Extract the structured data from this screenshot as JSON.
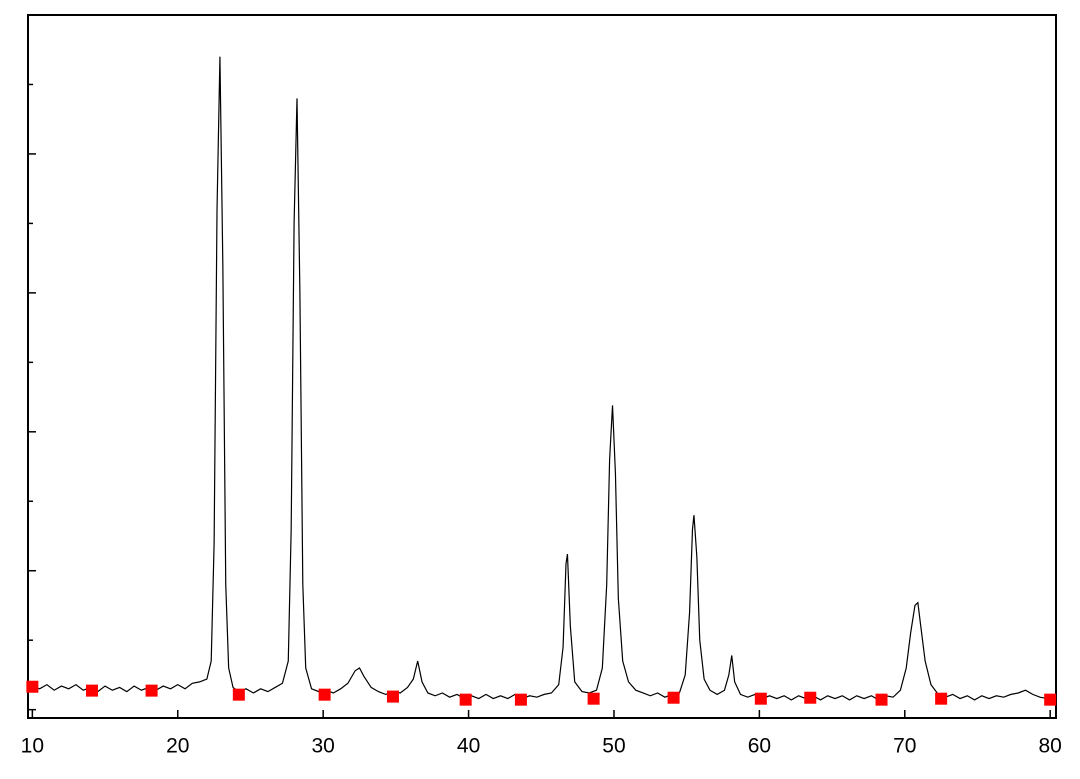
{
  "chart_data": {
    "type": "line",
    "xlim": [
      9.7,
      80.4
    ],
    "xticks": [
      10,
      20,
      30,
      40,
      50,
      60,
      70,
      80
    ],
    "ylim": [
      -0.06,
      5.0
    ],
    "yticks": [
      0,
      1,
      2,
      3,
      4
    ],
    "yminorticks": [
      0.5,
      1.5,
      2.5,
      3.5,
      4.5
    ],
    "series": [
      {
        "type": "line",
        "color": "#000000",
        "x": [
          10,
          10.5,
          11,
          11.5,
          12,
          12.5,
          13,
          13.5,
          14,
          14.5,
          15,
          15.5,
          16,
          16.5,
          17,
          17.5,
          18,
          18.5,
          19,
          19.5,
          20,
          20.5,
          21,
          21.5,
          22,
          22.3,
          22.5,
          22.7,
          22.9,
          23.1,
          23.3,
          23.5,
          23.8,
          24.2,
          24.7,
          25.2,
          25.7,
          26.2,
          26.7,
          27.2,
          27.6,
          27.8,
          28.0,
          28.2,
          28.4,
          28.6,
          28.8,
          29.2,
          29.7,
          30.2,
          30.7,
          31.2,
          31.7,
          32.2,
          32.5,
          32.8,
          33.3,
          33.8,
          34.3,
          34.8,
          35.3,
          35.8,
          36.2,
          36.5,
          36.8,
          37.2,
          37.7,
          38.2,
          38.7,
          39.2,
          39.7,
          40.2,
          40.7,
          41.2,
          41.7,
          42.2,
          42.7,
          43.2,
          43.7,
          44.2,
          44.7,
          45.2,
          45.7,
          46.2,
          46.5,
          46.7,
          46.8,
          47.0,
          47.3,
          47.8,
          48.3,
          48.8,
          49.2,
          49.5,
          49.7,
          49.9,
          50.1,
          50.3,
          50.6,
          51,
          51.5,
          52,
          52.5,
          53,
          53.5,
          54,
          54.5,
          54.9,
          55.2,
          55.4,
          55.5,
          55.7,
          55.9,
          56.2,
          56.6,
          57.1,
          57.6,
          57.9,
          58.1,
          58.3,
          58.7,
          59.2,
          59.7,
          60.2,
          60.7,
          61.2,
          61.7,
          62.2,
          62.7,
          63.2,
          63.7,
          64.2,
          64.7,
          65.2,
          65.7,
          66.2,
          66.7,
          67.2,
          67.7,
          68.2,
          68.7,
          69.2,
          69.7,
          70.1,
          70.4,
          70.7,
          70.9,
          71.1,
          71.4,
          71.8,
          72.3,
          72.8,
          73.3,
          73.8,
          74.3,
          74.8,
          75.3,
          75.8,
          76.3,
          76.8,
          77.3,
          77.8,
          78.3,
          78.8,
          79.3,
          79.8,
          80.2
        ],
        "values": [
          0.17,
          0.15,
          0.18,
          0.14,
          0.17,
          0.15,
          0.18,
          0.14,
          0.16,
          0.13,
          0.17,
          0.14,
          0.16,
          0.13,
          0.17,
          0.14,
          0.16,
          0.14,
          0.17,
          0.15,
          0.18,
          0.15,
          0.19,
          0.2,
          0.22,
          0.35,
          1.2,
          3.6,
          4.7,
          3.2,
          0.9,
          0.3,
          0.16,
          0.13,
          0.15,
          0.12,
          0.15,
          0.13,
          0.16,
          0.19,
          0.35,
          1.3,
          3.5,
          4.4,
          3.0,
          0.9,
          0.3,
          0.15,
          0.13,
          0.14,
          0.12,
          0.15,
          0.19,
          0.28,
          0.3,
          0.24,
          0.16,
          0.13,
          0.11,
          0.13,
          0.12,
          0.16,
          0.22,
          0.35,
          0.2,
          0.12,
          0.1,
          0.12,
          0.09,
          0.11,
          0.08,
          0.1,
          0.08,
          0.11,
          0.08,
          0.1,
          0.08,
          0.11,
          0.08,
          0.1,
          0.09,
          0.11,
          0.12,
          0.18,
          0.45,
          1.05,
          1.12,
          0.6,
          0.2,
          0.13,
          0.12,
          0.14,
          0.3,
          0.9,
          1.8,
          2.19,
          1.7,
          0.8,
          0.35,
          0.2,
          0.14,
          0.12,
          0.1,
          0.12,
          0.09,
          0.11,
          0.12,
          0.25,
          0.7,
          1.3,
          1.4,
          1.1,
          0.5,
          0.22,
          0.14,
          0.11,
          0.14,
          0.25,
          0.39,
          0.2,
          0.11,
          0.09,
          0.11,
          0.08,
          0.1,
          0.08,
          0.1,
          0.07,
          0.1,
          0.08,
          0.1,
          0.07,
          0.1,
          0.08,
          0.1,
          0.07,
          0.1,
          0.08,
          0.1,
          0.07,
          0.1,
          0.09,
          0.14,
          0.3,
          0.55,
          0.75,
          0.77,
          0.6,
          0.35,
          0.18,
          0.11,
          0.09,
          0.11,
          0.08,
          0.1,
          0.07,
          0.1,
          0.08,
          0.1,
          0.09,
          0.11,
          0.12,
          0.14,
          0.11,
          0.09,
          0.08,
          0.09
        ]
      },
      {
        "type": "scatter",
        "color": "#ff0000",
        "x": [
          10,
          14.1,
          18.2,
          24.2,
          30.1,
          34.8,
          39.8,
          43.6,
          48.6,
          54.1,
          60.1,
          63.5,
          68.4,
          72.5,
          80
        ],
        "values": [
          0.165,
          0.137,
          0.137,
          0.108,
          0.108,
          0.094,
          0.072,
          0.072,
          0.079,
          0.086,
          0.079,
          0.086,
          0.072,
          0.079,
          0.072
        ]
      }
    ]
  }
}
